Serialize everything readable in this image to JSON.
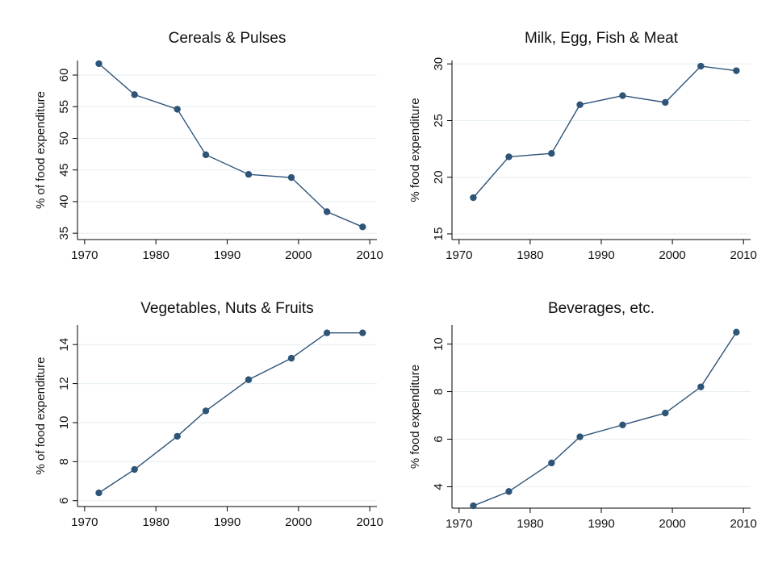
{
  "chart_data": [
    {
      "type": "line",
      "title": "Cereals & Pulses",
      "y_label": "% of food expenditure",
      "x": [
        1972,
        1977,
        1983,
        1987,
        1993,
        1999,
        2004,
        2009
      ],
      "values": [
        61.8,
        56.9,
        54.6,
        47.4,
        44.3,
        43.8,
        38.4,
        36.0
      ],
      "color": "#2e5478",
      "xlim": [
        1969,
        2011
      ],
      "xticks": [
        1970,
        1980,
        1990,
        2000,
        2010
      ],
      "ylim": [
        34,
        62.3
      ],
      "yticks": [
        35,
        40,
        45,
        50,
        55,
        60
      ],
      "grid": true
    },
    {
      "type": "line",
      "title": "Milk, Egg, Fish & Meat",
      "y_label": "% food expenditure",
      "x": [
        1972,
        1977,
        1983,
        1987,
        1993,
        1999,
        2004,
        2009
      ],
      "values": [
        18.2,
        21.8,
        22.1,
        26.4,
        27.2,
        26.6,
        29.8,
        29.4
      ],
      "color": "#2e5478",
      "xlim": [
        1969,
        2011
      ],
      "xticks": [
        1970,
        1980,
        1990,
        2000,
        2010
      ],
      "ylim": [
        14.5,
        30.3
      ],
      "yticks": [
        15,
        20,
        25,
        30
      ],
      "grid": true
    },
    {
      "type": "line",
      "title": "Vegetables, Nuts & Fruits",
      "y_label": "% of food expenditure",
      "x": [
        1972,
        1977,
        1983,
        1987,
        1993,
        1999,
        2004,
        2009
      ],
      "values": [
        6.4,
        7.6,
        9.3,
        10.6,
        12.2,
        13.3,
        14.6,
        14.6
      ],
      "color": "#2e5478",
      "xlim": [
        1969,
        2011
      ],
      "xticks": [
        1970,
        1980,
        1990,
        2000,
        2010
      ],
      "ylim": [
        5.7,
        15
      ],
      "yticks": [
        6,
        8,
        10,
        12,
        14
      ],
      "grid": true
    },
    {
      "type": "line",
      "title": "Beverages, etc.",
      "y_label": "% food expenditure",
      "x": [
        1972,
        1977,
        1983,
        1987,
        1993,
        1999,
        2004,
        2009
      ],
      "values": [
        3.2,
        3.8,
        5.0,
        6.1,
        6.6,
        7.1,
        8.2,
        10.5
      ],
      "color": "#2e5478",
      "xlim": [
        1969,
        2011
      ],
      "xticks": [
        1970,
        1980,
        1990,
        2000,
        2010
      ],
      "ylim": [
        3.1,
        10.8
      ],
      "yticks": [
        4,
        6,
        8,
        10
      ],
      "grid": true
    }
  ]
}
